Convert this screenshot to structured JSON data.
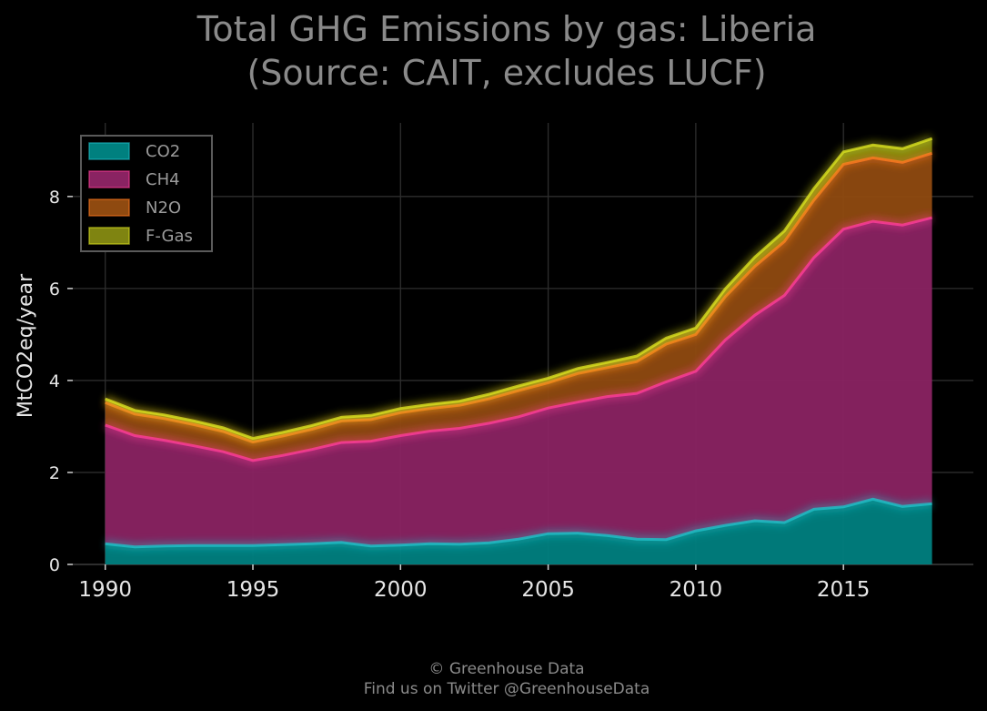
{
  "chart_data": {
    "type": "area",
    "stacked": true,
    "title": [
      "Total GHG Emissions by gas: Liberia",
      "(Source: CAIT, excludes LUCF)"
    ],
    "xlabel": "",
    "ylabel": "MtCO2eq/year",
    "xlim": [
      1988.9,
      2019.4
    ],
    "ylim": [
      0,
      9.6
    ],
    "xticks": [
      1990,
      1995,
      2000,
      2005,
      2010,
      2015
    ],
    "yticks": [
      0,
      2,
      4,
      6,
      8
    ],
    "grid": true,
    "legend_position": "top-left",
    "x": [
      1990,
      1991,
      1992,
      1993,
      1994,
      1995,
      1996,
      1997,
      1998,
      1999,
      2000,
      2001,
      2002,
      2003,
      2004,
      2005,
      2006,
      2007,
      2008,
      2009,
      2010,
      2011,
      2012,
      2013,
      2014,
      2015,
      2016,
      2017,
      2018
    ],
    "series": [
      {
        "name": "CO2",
        "color": "#00807f",
        "line_color": "#20c0c8",
        "values": [
          0.45,
          0.38,
          0.4,
          0.41,
          0.41,
          0.41,
          0.43,
          0.45,
          0.48,
          0.4,
          0.42,
          0.45,
          0.44,
          0.47,
          0.55,
          0.67,
          0.68,
          0.63,
          0.55,
          0.54,
          0.73,
          0.85,
          0.95,
          0.91,
          1.2,
          1.25,
          1.42,
          1.26,
          1.32
        ]
      },
      {
        "name": "CH4",
        "color": "#8a2362",
        "line_color": "#ff3d9a",
        "values": [
          2.58,
          2.42,
          2.3,
          2.17,
          2.04,
          1.85,
          1.94,
          2.05,
          2.17,
          2.28,
          2.38,
          2.45,
          2.52,
          2.6,
          2.66,
          2.73,
          2.85,
          3.02,
          3.17,
          3.43,
          3.47,
          4.03,
          4.47,
          4.94,
          5.47,
          6.04,
          6.04,
          6.12,
          6.22
        ]
      },
      {
        "name": "N2O",
        "color": "#8f4a10",
        "line_color": "#ff7a20",
        "values": [
          0.49,
          0.47,
          0.47,
          0.46,
          0.44,
          0.4,
          0.42,
          0.44,
          0.47,
          0.47,
          0.5,
          0.49,
          0.5,
          0.53,
          0.57,
          0.55,
          0.62,
          0.63,
          0.69,
          0.82,
          0.8,
          0.94,
          1.06,
          1.17,
          1.25,
          1.41,
          1.38,
          1.36,
          1.4
        ]
      },
      {
        "name": "F-Gas",
        "color": "#7f8411",
        "line_color": "#d8e020",
        "values": [
          0.08,
          0.08,
          0.08,
          0.08,
          0.08,
          0.08,
          0.08,
          0.08,
          0.08,
          0.09,
          0.09,
          0.09,
          0.09,
          0.1,
          0.1,
          0.1,
          0.11,
          0.11,
          0.12,
          0.13,
          0.14,
          0.17,
          0.2,
          0.23,
          0.25,
          0.27,
          0.28,
          0.3,
          0.32
        ]
      }
    ]
  },
  "footer": {
    "line1": "© Greenhouse Data",
    "line2": "Find us on Twitter @GreenhouseData"
  }
}
